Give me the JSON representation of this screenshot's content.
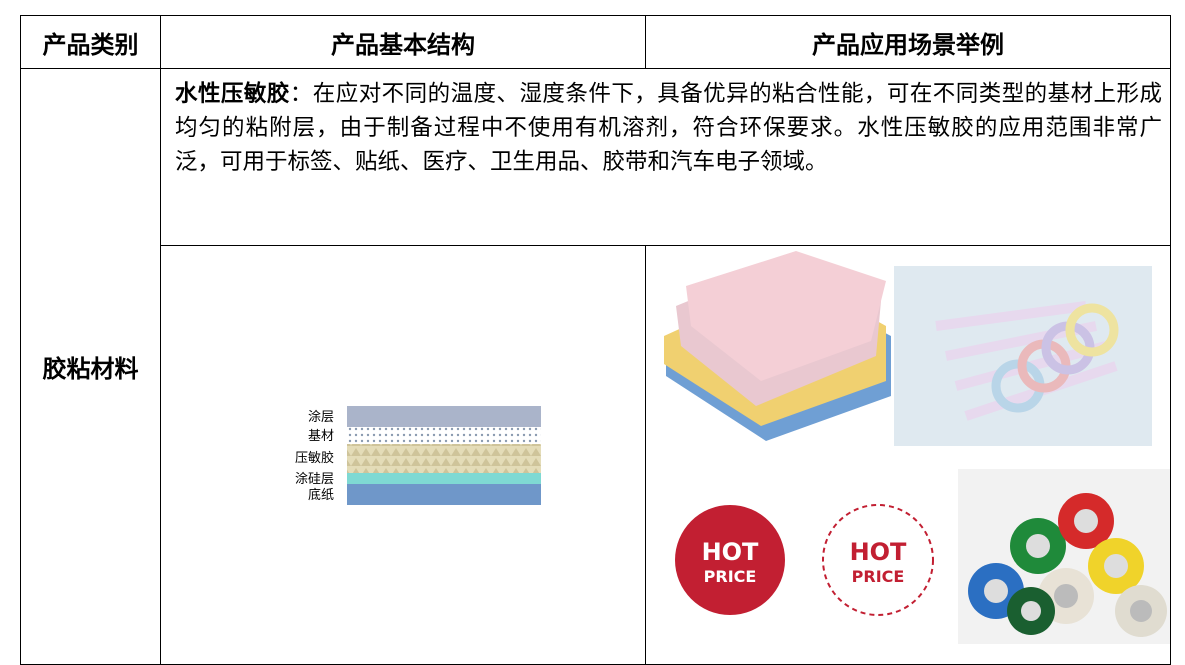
{
  "table": {
    "header": [
      "产品类别",
      "产品基本结构",
      "产品应用场景举例"
    ],
    "category": "胶粘材料",
    "description": {
      "term": "水性压敏胶",
      "separator": "：",
      "text": "在应对不同的温度、湿度条件下，具备优异的粘合性能，可在不同类型的基材上形成均匀的粘附层，由于制备过程中不使用有机溶剂，符合环保要求。水性压敏胶的应用范围非常广泛，可用于标签、贴纸、医疗、卫生用品、胶带和汽车电子领域。"
    },
    "layers": [
      "涂层",
      "基材",
      "压敏胶",
      "涂硅层",
      "底纸"
    ],
    "stickers": [
      {
        "line1": "HOT",
        "line2": "PRICE"
      },
      {
        "line1": "HOT",
        "line2": "PRICE"
      }
    ]
  }
}
